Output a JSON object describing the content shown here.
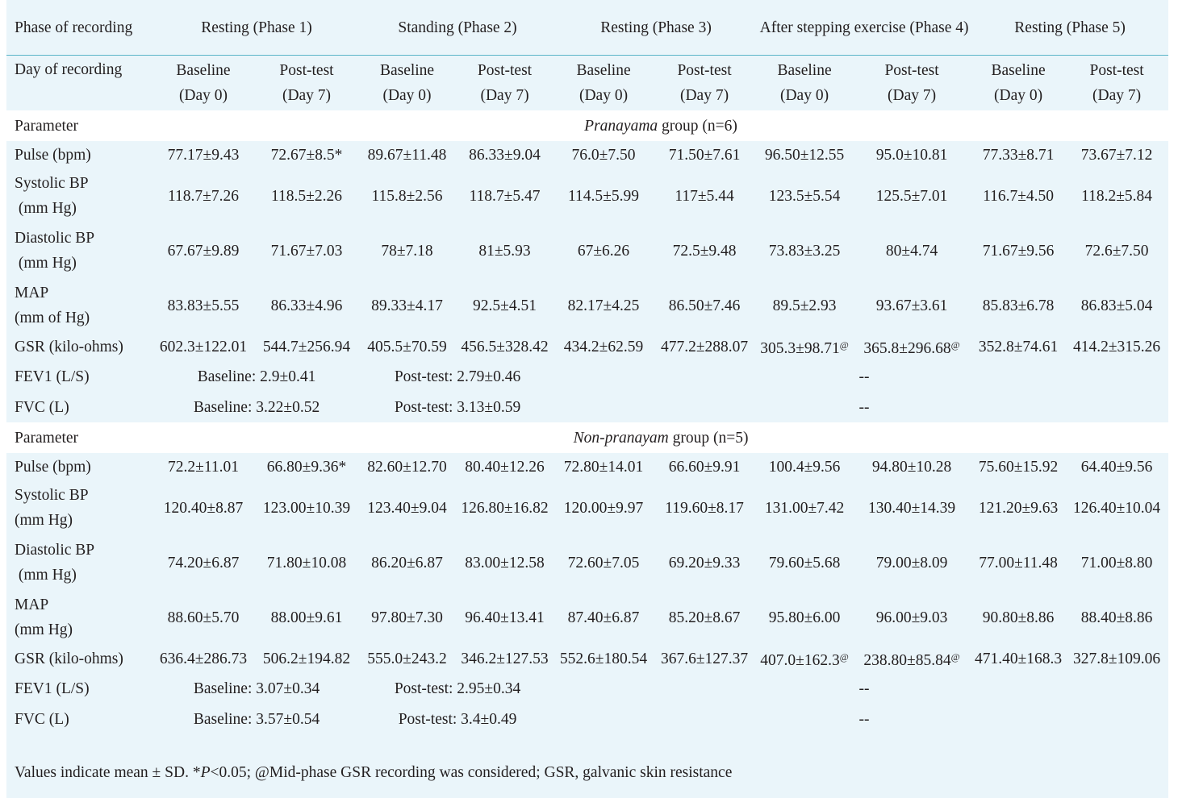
{
  "header": {
    "phase_label": "Phase of recording",
    "phases": [
      "Resting (Phase 1)",
      "Standing (Phase 2)",
      "Resting (Phase 3)",
      "After stepping exercise (Phase 4)",
      "Resting (Phase 5)"
    ],
    "day_label": "Day of recording",
    "sub_a_line1": "Baseline",
    "sub_a_line2": "(Day 0)",
    "sub_b_line1": "Post-test",
    "sub_b_line2": "(Day 7)"
  },
  "groups": [
    {
      "param_label": "Parameter",
      "name_italic": "Pranayama",
      "name_rest": " group (n=6)",
      "rows": [
        {
          "label": "Pulse (bpm)",
          "label2": "",
          "values": [
            "77.17±9.43",
            "72.67±8.5*",
            "89.67±11.48",
            "86.33±9.04",
            "76.0±7.50",
            "71.50±7.61",
            "96.50±12.55",
            "95.0±10.81",
            "77.33±8.71",
            "73.67±7.12"
          ]
        },
        {
          "label": "Systolic BP",
          "label2": " (mm Hg)",
          "values": [
            "118.7±7.26",
            "118.5±2.26",
            "115.8±2.56",
            "118.7±5.47",
            "114.5±5.99",
            "117±5.44",
            "123.5±5.54",
            "125.5±7.01",
            "116.7±4.50",
            "118.2±5.84"
          ]
        },
        {
          "label": "Diastolic BP",
          "label2": " (mm Hg)",
          "values": [
            "67.67±9.89",
            "71.67±7.03",
            "78±7.18",
            "81±5.93",
            "67±6.26",
            "72.5±9.48",
            "73.83±3.25",
            "80±4.74",
            "71.67±9.56",
            "72.6±7.50"
          ]
        },
        {
          "label": "MAP",
          "label2": "(mm of Hg)",
          "values": [
            "83.83±5.55",
            "86.33±4.96",
            "89.33±4.17",
            "92.5±4.51",
            "82.17±4.25",
            "86.50±7.46",
            "89.5±2.93",
            "93.67±3.61",
            "85.83±6.78",
            "86.83±5.04"
          ]
        },
        {
          "label": "GSR (kilo-ohms)",
          "label2": "",
          "values": [
            "602.3±122.01",
            "544.7±256.94",
            "405.5±70.59",
            "456.5±328.42",
            "434.2±62.59",
            "477.2±288.07",
            "305.3±98.71",
            "365.8±296.68",
            "352.8±74.61",
            "414.2±315.26"
          ],
          "sup_marker": "@"
        }
      ],
      "fev1": {
        "label": "FEV1 (L/S)",
        "baseline": "Baseline: 2.9±0.41",
        "posttest": "Post-test: 2.79±0.46",
        "dash": "--"
      },
      "fvc": {
        "label": "FVC (L)",
        "baseline": "Baseline: 3.22±0.52",
        "posttest": "Post-test: 3.13±0.59",
        "dash": "--"
      }
    },
    {
      "param_label": "Parameter",
      "name_italic": "Non-pranayam",
      "name_rest": " group (n=5)",
      "rows": [
        {
          "label": "Pulse (bpm)",
          "label2": "",
          "values": [
            "72.2±11.01",
            "66.80±9.36*",
            "82.60±12.70",
            "80.40±12.26",
            "72.80±14.01",
            "66.60±9.91",
            "100.4±9.56",
            "94.80±10.28",
            "75.60±15.92",
            "64.40±9.56"
          ]
        },
        {
          "label": "Systolic BP",
          "label2": "(mm Hg)",
          "values": [
            "120.40±8.87",
            "123.00±10.39",
            "123.40±9.04",
            "126.80±16.82",
            "120.00±9.97",
            "119.60±8.17",
            "131.00±7.42",
            "130.40±14.39",
            "121.20±9.63",
            "126.40±10.04"
          ]
        },
        {
          "label": "Diastolic BP",
          "label2": " (mm Hg)",
          "values": [
            "74.20±6.87",
            "71.80±10.08",
            "86.20±6.87",
            "83.00±12.58",
            "72.60±7.05",
            "69.20±9.33",
            "79.60±5.68",
            "79.00±8.09",
            "77.00±11.48",
            "71.00±8.80"
          ]
        },
        {
          "label": "MAP",
          "label2": "(mm Hg)",
          "values": [
            "88.60±5.70",
            "88.00±9.61",
            "97.80±7.30",
            "96.40±13.41",
            "87.40±6.87",
            "85.20±8.67",
            "95.80±6.00",
            "96.00±9.03",
            "90.80±8.86",
            "88.40±8.86"
          ]
        },
        {
          "label": "GSR (kilo-ohms)",
          "label2": "",
          "values": [
            "636.4±286.73",
            "506.2±194.82",
            "555.0±243.2",
            "346.2±127.53",
            "552.6±180.54",
            "367.6±127.37",
            "407.0±162.3",
            "238.80±85.84",
            "471.40±168.3",
            "327.8±109.06"
          ],
          "sup_marker": "@"
        }
      ],
      "fev1": {
        "label": "FEV1 (L/S)",
        "baseline": "Baseline: 3.07±0.34",
        "posttest": "Post-test: 2.95±0.34",
        "dash": "--"
      },
      "fvc": {
        "label": "FVC (L)",
        "baseline": "Baseline: 3.57±0.54",
        "posttest": "Post-test: 3.4±0.49",
        "dash": "--"
      }
    }
  ],
  "footnote": {
    "part1": "Values indicate mean ± SD. *",
    "p_italic": "P",
    "part2": "<0.05; @Mid-phase GSR recording was considered; GSR, galvanic skin resistance"
  },
  "colors": {
    "background": "#eaf5fa",
    "rule": "#5ab4c8",
    "section_band": "#ffffff"
  }
}
